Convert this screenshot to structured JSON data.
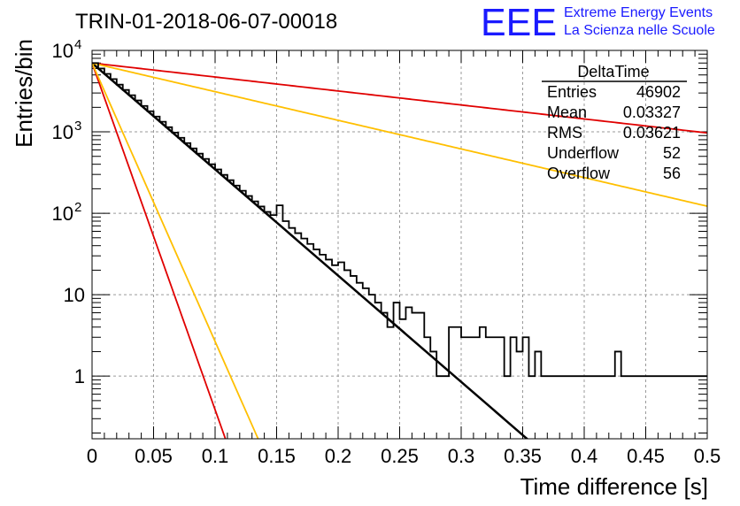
{
  "title": "TRIN-01-2018-06-07-00018",
  "logo": {
    "mark": "EEE",
    "line1": "Extreme Energy Events",
    "line2": "La Scienza nelle Scuole",
    "color": "#1a1aff"
  },
  "stats_box": {
    "title": "DeltaTime",
    "rows": [
      {
        "label": "Entries",
        "value": "46902"
      },
      {
        "label": "Mean",
        "value": "0.03327"
      },
      {
        "label": "RMS",
        "value": "0.03621"
      },
      {
        "label": "Underflow",
        "value": "52"
      },
      {
        "label": "Overflow",
        "value": "56"
      }
    ]
  },
  "chart_data": {
    "type": "line",
    "title": "TRIN-01-2018-06-07-00018",
    "xlabel": "Time difference [s]",
    "ylabel": "Entries/bin",
    "xlim": [
      0,
      0.5
    ],
    "ylim": [
      0.17,
      10000
    ],
    "yscale": "log",
    "grid": true,
    "x_ticks": [
      {
        "value": 0,
        "label": "0"
      },
      {
        "value": 0.05,
        "label": "0.05"
      },
      {
        "value": 0.1,
        "label": "0.1"
      },
      {
        "value": 0.15,
        "label": "0.15"
      },
      {
        "value": 0.2,
        "label": "0.2"
      },
      {
        "value": 0.25,
        "label": "0.25"
      },
      {
        "value": 0.3,
        "label": "0.3"
      },
      {
        "value": 0.35,
        "label": "0.35"
      },
      {
        "value": 0.4,
        "label": "0.4"
      },
      {
        "value": 0.45,
        "label": "0.45"
      },
      {
        "value": 0.5,
        "label": "0.5"
      }
    ],
    "y_ticks": [
      {
        "value": 1,
        "label": "1"
      },
      {
        "value": 10,
        "label": "10"
      },
      {
        "value": 100,
        "label": "10",
        "exp": "2"
      },
      {
        "value": 1000,
        "label": "10",
        "exp": "3"
      },
      {
        "value": 10000,
        "label": "10",
        "exp": "4"
      }
    ],
    "histogram": {
      "bin_width": 0.005,
      "color": "#000000",
      "counts": [
        7000,
        6000,
        5150,
        4450,
        3800,
        3270,
        2820,
        2430,
        2080,
        1790,
        1540,
        1330,
        1140,
        980,
        845,
        728,
        626,
        540,
        465,
        400,
        345,
        296,
        255,
        219,
        189,
        163,
        140,
        121,
        104,
        95,
        125,
        80,
        66,
        57,
        49,
        42,
        36,
        31,
        27,
        23,
        25,
        20,
        17,
        14,
        12,
        10,
        8,
        6,
        4,
        8,
        5,
        7,
        6,
        6,
        3,
        2,
        1,
        1,
        4,
        4,
        3,
        3,
        3,
        4,
        3,
        3,
        3,
        1,
        3,
        2,
        3,
        1,
        2,
        1,
        1,
        1,
        1,
        1,
        1,
        1,
        1,
        1,
        1,
        1,
        1,
        2,
        1,
        1,
        1,
        1,
        1,
        1,
        1,
        1,
        1,
        1,
        1,
        1,
        1,
        1
      ]
    },
    "series": [
      {
        "kind": "exponential",
        "color": "#000000",
        "width": 2.5,
        "A": 7000,
        "tau": 0.03327
      },
      {
        "kind": "exponential",
        "color": "#e00000",
        "width": 1.8,
        "A": 7000,
        "tau": 0.253
      },
      {
        "kind": "exponential",
        "color": "#ffbf00",
        "width": 1.8,
        "A": 7000,
        "tau": 0.1235
      },
      {
        "kind": "exponential",
        "color": "#e00000",
        "width": 1.8,
        "A": 7000,
        "tau": 0.0102
      },
      {
        "kind": "exponential",
        "color": "#ffbf00",
        "width": 1.8,
        "A": 7000,
        "tau": 0.0127
      }
    ]
  }
}
